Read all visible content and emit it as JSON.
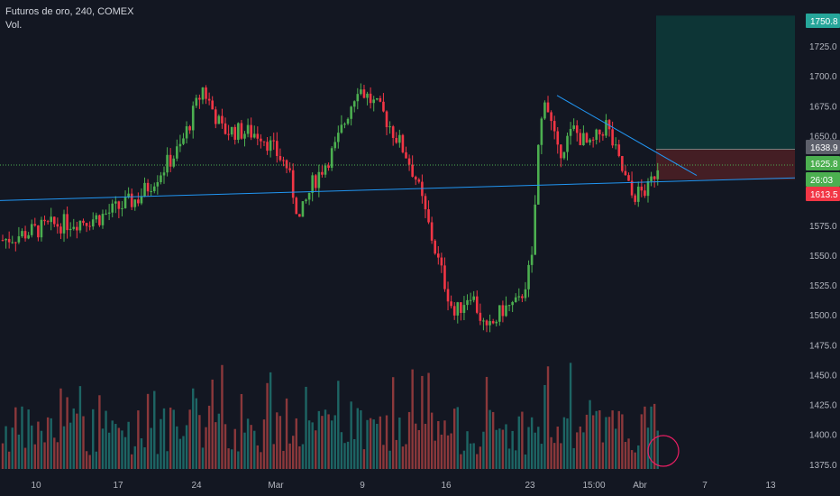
{
  "legend": {
    "title": "Futuros de oro, 240, COMEX",
    "volume_label": "Vol."
  },
  "colors": {
    "background": "#131722",
    "up": "#26a69a",
    "down": "#ef5350",
    "candle_up": "#4caf50",
    "candle_down": "#f23645",
    "trendline": "#2196f3",
    "last_price_line": "#4caf50",
    "target_zone": "#0d3b3a",
    "stop_zone": "#4a1f25"
  },
  "price_tags": {
    "target": "1750.8",
    "entry": "1638.9",
    "last": "1625.8",
    "countdown": "26:03",
    "stop": "1613.5"
  },
  "chart_data": {
    "type": "candlestick",
    "title": "Futuros de oro, 240, COMEX",
    "y_axis": {
      "ticks": [
        "1750.0",
        "1725.0",
        "1700.0",
        "1675.0",
        "1650.0",
        "1625.0",
        "1600.0",
        "1575.0",
        "1550.0",
        "1525.0",
        "1500.0",
        "1475.0",
        "1450.0",
        "1425.0",
        "1400.0",
        "1375.0"
      ],
      "range": [
        1362,
        1768
      ]
    },
    "x_axis": {
      "ticks": [
        "10",
        "17",
        "24",
        "Mar",
        "9",
        "16",
        "23",
        "15:00",
        "Abr",
        "7",
        "13"
      ]
    },
    "grid": false,
    "price_keypoints": [
      {
        "i": 0,
        "p": 1563
      },
      {
        "i": 15,
        "p": 1575
      },
      {
        "i": 30,
        "p": 1582
      },
      {
        "i": 42,
        "p": 1598
      },
      {
        "i": 55,
        "p": 1640
      },
      {
        "i": 62,
        "p": 1690
      },
      {
        "i": 68,
        "p": 1655
      },
      {
        "i": 80,
        "p": 1652
      },
      {
        "i": 88,
        "p": 1625
      },
      {
        "i": 92,
        "p": 1580
      },
      {
        "i": 96,
        "p": 1610
      },
      {
        "i": 103,
        "p": 1640
      },
      {
        "i": 110,
        "p": 1692
      },
      {
        "i": 118,
        "p": 1668
      },
      {
        "i": 125,
        "p": 1635
      },
      {
        "i": 128,
        "p": 1615
      },
      {
        "i": 130,
        "p": 1595
      },
      {
        "i": 135,
        "p": 1545
      },
      {
        "i": 140,
        "p": 1500
      },
      {
        "i": 145,
        "p": 1520
      },
      {
        "i": 150,
        "p": 1485
      },
      {
        "i": 155,
        "p": 1505
      },
      {
        "i": 160,
        "p": 1510
      },
      {
        "i": 164,
        "p": 1545
      },
      {
        "i": 166,
        "p": 1640
      },
      {
        "i": 168,
        "p": 1685
      },
      {
        "i": 172,
        "p": 1635
      },
      {
        "i": 177,
        "p": 1655
      },
      {
        "i": 182,
        "p": 1640
      },
      {
        "i": 187,
        "p": 1660
      },
      {
        "i": 191,
        "p": 1628
      },
      {
        "i": 195,
        "p": 1600
      },
      {
        "i": 200,
        "p": 1605
      },
      {
        "i": 203,
        "p": 1626
      }
    ],
    "volume_pattern": "varies",
    "trendlines": [
      {
        "name": "support",
        "from": {
          "x_label": "start",
          "price": 1596
        },
        "to": {
          "x_label": "end",
          "price": 1615
        }
      },
      {
        "name": "resistance",
        "from": {
          "price": 1684
        },
        "to": {
          "price": 1617
        }
      }
    ],
    "position": {
      "type": "long",
      "target": 1750.8,
      "entry": 1638.9,
      "stop": 1613.5
    },
    "last_price": 1625.8
  }
}
